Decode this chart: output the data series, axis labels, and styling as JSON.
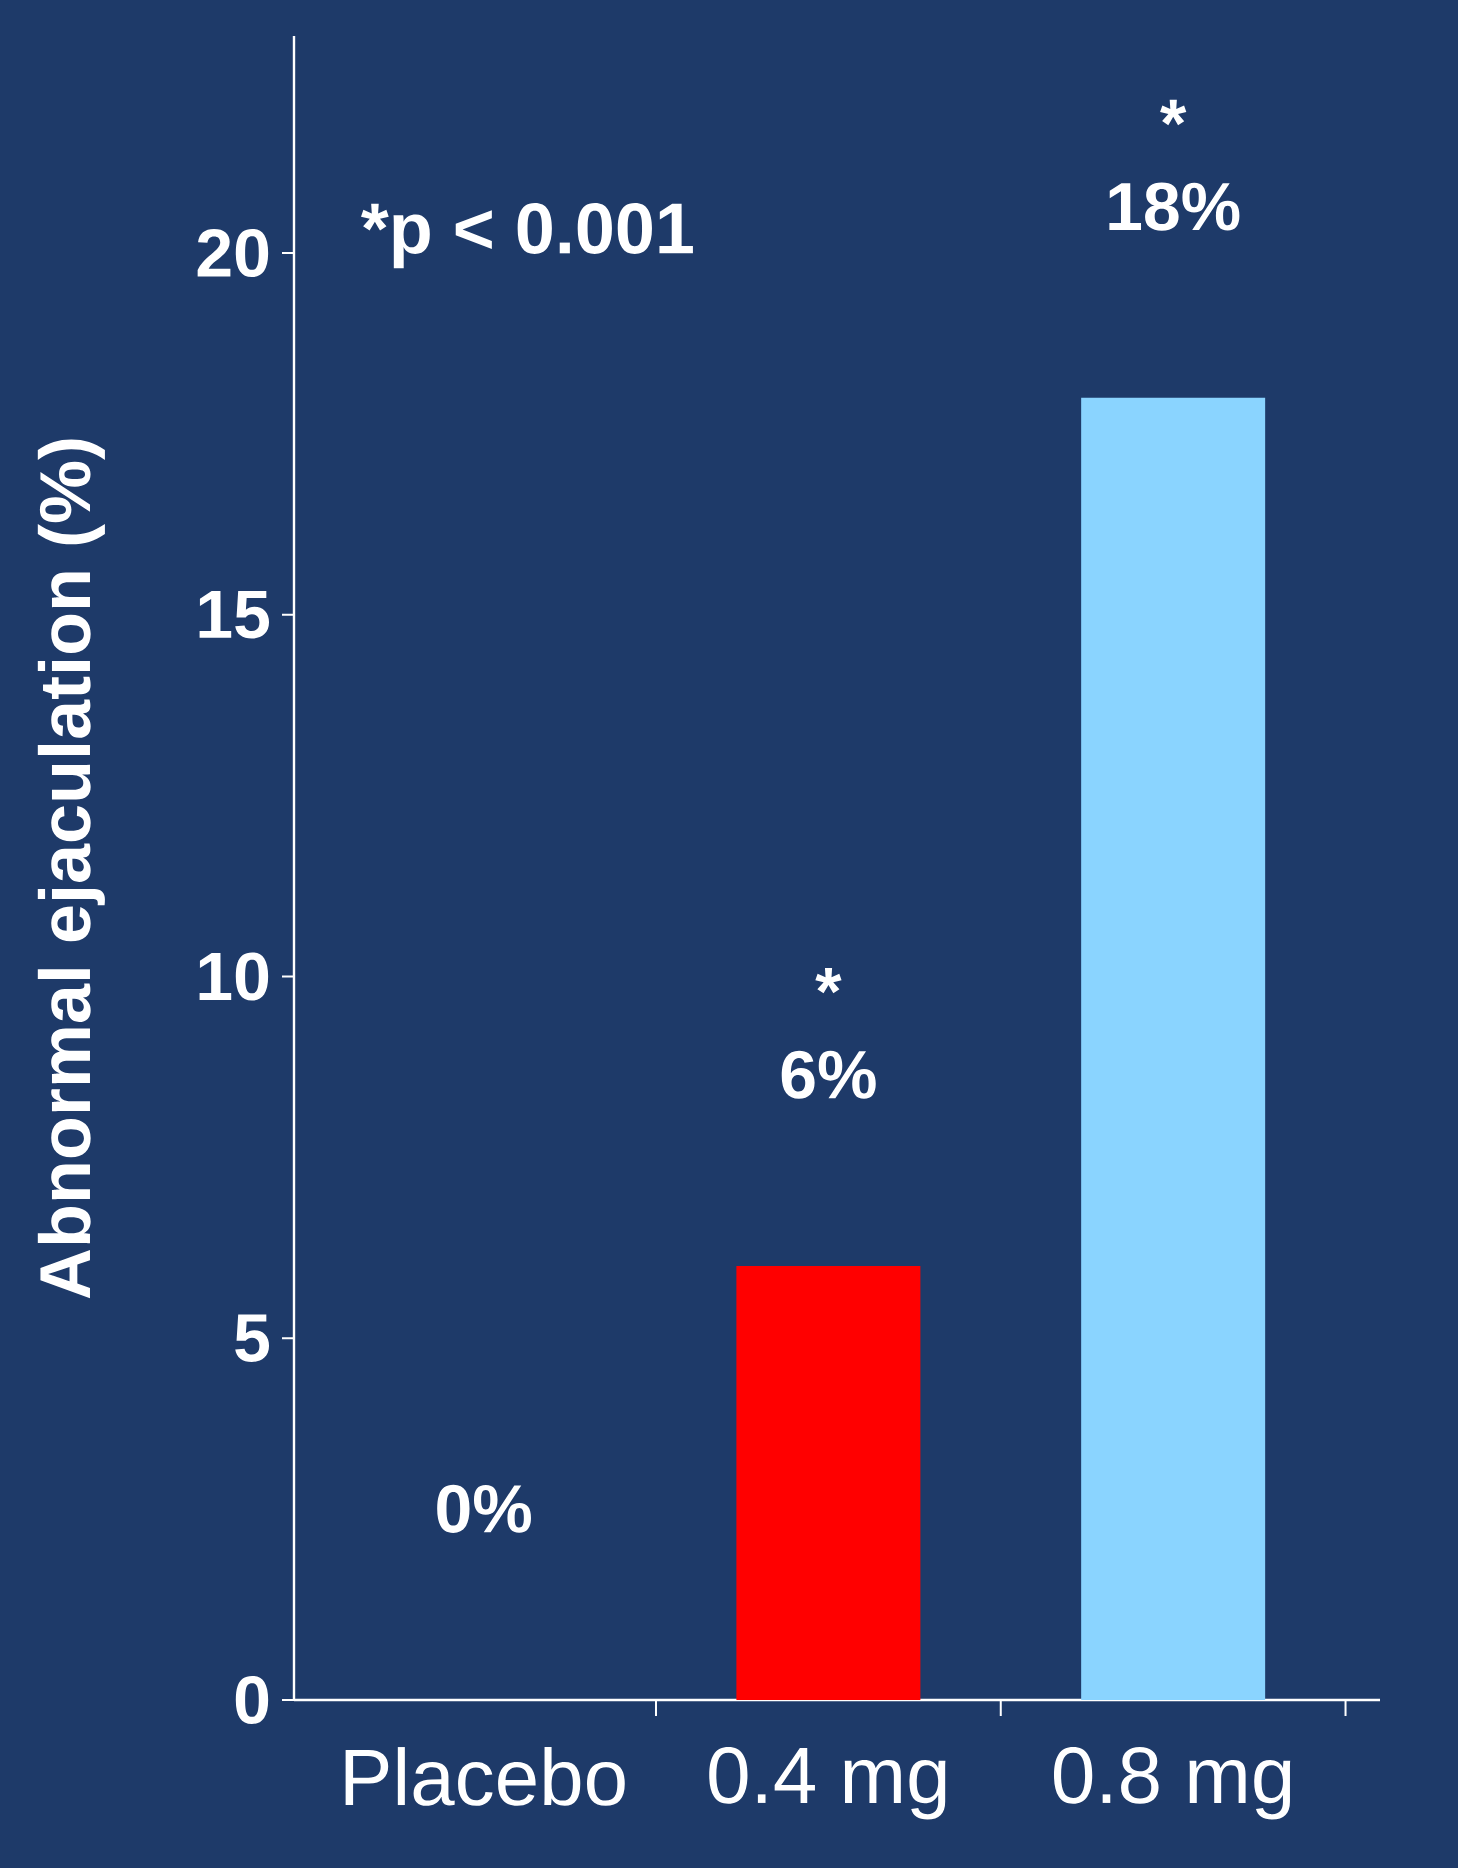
{
  "chart_data": {
    "type": "bar",
    "ylabel": "Abnormal ejaculation (%)",
    "categories": [
      "Placebo",
      "0.4 mg",
      "0.8 mg"
    ],
    "values": [
      0,
      6,
      18
    ],
    "colors": [
      "#555555",
      "#ff0000",
      "#8ad4ff"
    ],
    "value_labels": [
      "0%",
      "6%",
      "18%"
    ],
    "ylim": [
      0,
      23
    ],
    "yticks": [
      0,
      5,
      10,
      15,
      20
    ],
    "annotations": [
      "*p < 0.001",
      "*",
      "*"
    ]
  }
}
